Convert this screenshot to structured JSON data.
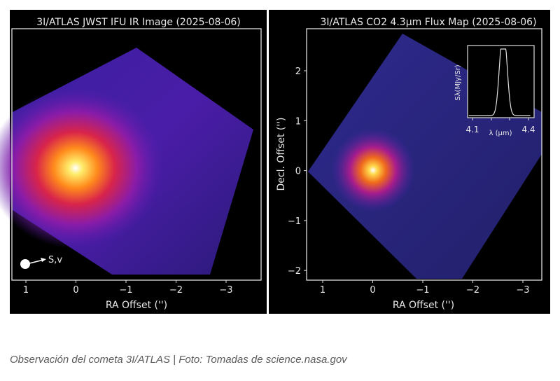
{
  "chart_data": [
    {
      "type": "heatmap",
      "title": "3I/ATLAS JWST IFU IR Image (2025-08-06)",
      "xlabel": "RA Offset ('')",
      "ylabel": "",
      "xticks": [
        "1",
        "0",
        "−1",
        "−2",
        "−3"
      ],
      "yticks": [],
      "peak": {
        "ra": 0,
        "dec": 0
      },
      "annotation": "S,v",
      "colormap": "plasma-like (black-blue-purple-red-yellow-white)"
    },
    {
      "type": "heatmap",
      "title": "3I/ATLAS CO2 4.3µm Flux Map (2025-08-06)",
      "xlabel": "RA Offset ('')",
      "ylabel": "Decl. Offset ('')",
      "xticks": [
        "1",
        "0",
        "−1",
        "−2",
        "−3"
      ],
      "yticks": [
        "2",
        "1",
        "0",
        "−1",
        "−2"
      ],
      "peak": {
        "ra": 0,
        "dec": 0
      },
      "inset": {
        "type": "line",
        "xlabel": "λ (µm)",
        "ylabel": "Sλ(MJy/Sr)",
        "xticks": [
          "4.1",
          "4.4"
        ],
        "xlim": [
          4.1,
          4.4
        ],
        "description_peaks": [
          4.255,
          4.275
        ]
      }
    }
  ],
  "caption": "Observación del cometa 3I/ATLAS | Foto: Tomadas de science.nasa.gov"
}
